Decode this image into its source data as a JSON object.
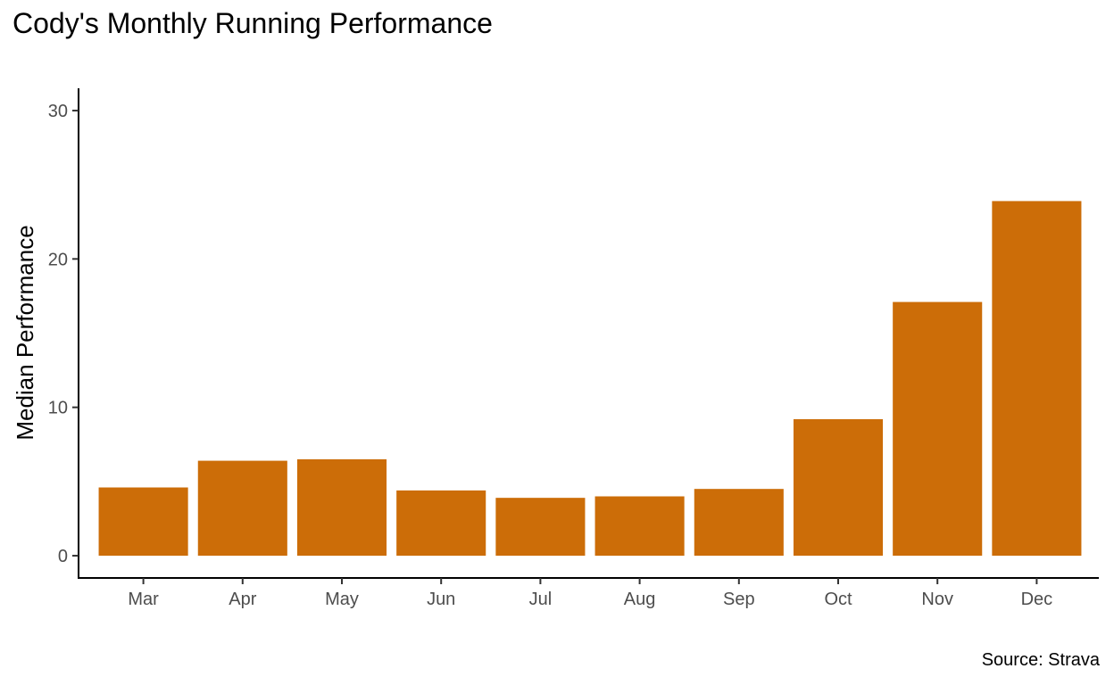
{
  "chart_data": {
    "type": "bar",
    "title": "Cody's Monthly Running Performance",
    "caption": "Source: Strava",
    "xlabel": "",
    "ylabel": "Median Performance",
    "categories": [
      "Mar",
      "Apr",
      "May",
      "Jun",
      "Jul",
      "Aug",
      "Sep",
      "Oct",
      "Nov",
      "Dec"
    ],
    "values": [
      4.6,
      6.4,
      6.5,
      4.4,
      3.9,
      4.0,
      4.5,
      9.2,
      17.1,
      23.9
    ],
    "ylim": [
      -1.5,
      31.5
    ],
    "yticks": [
      "0",
      "10",
      "20",
      "30"
    ],
    "bar_color": "#CC6D08",
    "grid": false,
    "legend": "none"
  }
}
